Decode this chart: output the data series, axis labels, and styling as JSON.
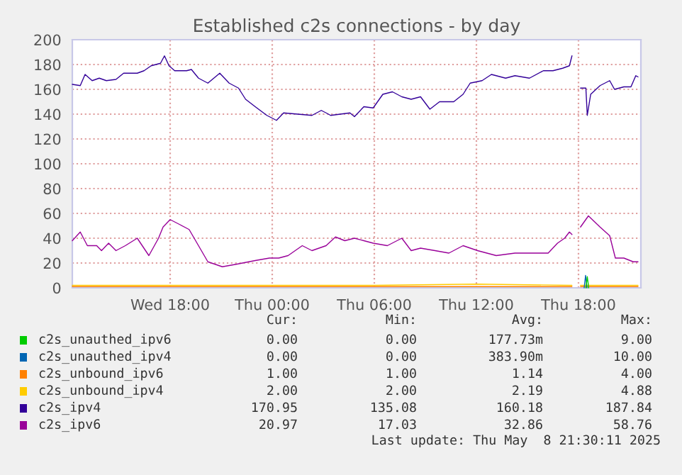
{
  "chart_data": {
    "type": "line",
    "title": "Established c2s connections - by day",
    "xlim": [
      "2025-05-07T12:15",
      "2025-05-08T21:40"
    ],
    "xticks": [
      {
        "value": "2025-05-07T18:00",
        "label": "Wed 18:00"
      },
      {
        "value": "2025-05-08T00:00",
        "label": "Thu 00:00"
      },
      {
        "value": "2025-05-08T06:00",
        "label": "Thu 06:00"
      },
      {
        "value": "2025-05-08T12:00",
        "label": "Thu 12:00"
      },
      {
        "value": "2025-05-08T18:00",
        "label": "Thu 18:00"
      }
    ],
    "ylim": [
      0,
      200
    ],
    "yticks": [
      0,
      20,
      40,
      60,
      80,
      100,
      120,
      140,
      160,
      180,
      200
    ],
    "grid": true,
    "legend": "bottom",
    "marker": "none",
    "line_style": "solid",
    "series": [
      {
        "name": "c2s_unauthed_ipv6",
        "color": "#00cc00",
        "x": [
          "2025-05-08T18:26",
          "2025-05-08T18:31",
          "2025-05-08T18:36"
        ],
        "values": [
          0,
          9,
          0
        ]
      },
      {
        "name": "c2s_unauthed_ipv4",
        "color": "#0066b3",
        "x": [
          "2025-05-08T18:20",
          "2025-05-08T18:25",
          "2025-05-08T18:30"
        ],
        "values": [
          0,
          10,
          0
        ]
      },
      {
        "name": "c2s_unbound_ipv6",
        "color": "#ff8000",
        "x": [
          "2025-05-07T12:15",
          "2025-05-08T06:00",
          "2025-05-08T17:37",
          "2025-05-08T17:52",
          "2025-05-08T18:07",
          "2025-05-08T21:30"
        ],
        "values": [
          1,
          1,
          1,
          null,
          1,
          1
        ]
      },
      {
        "name": "c2s_unbound_ipv4",
        "color": "#ffcc00",
        "x": [
          "2025-05-07T12:15",
          "2025-05-07T20:00",
          "2025-05-08T06:00",
          "2025-05-08T12:00",
          "2025-05-08T17:37",
          "2025-05-08T17:52",
          "2025-05-08T18:07",
          "2025-05-08T21:30"
        ],
        "values": [
          2,
          2,
          2,
          3,
          2,
          null,
          2,
          2
        ]
      },
      {
        "name": "c2s_ipv4",
        "color": "#330099",
        "x": [
          "2025-05-07T12:15",
          "2025-05-07T12:43",
          "2025-05-07T13:00",
          "2025-05-07T13:25",
          "2025-05-07T13:50",
          "2025-05-07T14:15",
          "2025-05-07T14:49",
          "2025-05-07T15:16",
          "2025-05-07T16:04",
          "2025-05-07T16:28",
          "2025-05-07T16:53",
          "2025-05-07T17:26",
          "2025-05-07T17:40",
          "2025-05-07T17:56",
          "2025-05-07T18:16",
          "2025-05-07T18:58",
          "2025-05-07T19:15",
          "2025-05-07T19:40",
          "2025-05-07T20:13",
          "2025-05-07T20:55",
          "2025-05-07T21:28",
          "2025-05-07T22:01",
          "2025-05-07T22:26",
          "2025-05-07T23:00",
          "2025-05-07T23:41",
          "2025-05-08T00:15",
          "2025-05-08T00:40",
          "2025-05-08T01:30",
          "2025-05-08T02:20",
          "2025-05-08T02:53",
          "2025-05-08T03:10",
          "2025-05-08T03:26",
          "2025-05-08T04:34",
          "2025-05-08T04:50",
          "2025-05-08T05:23",
          "2025-05-08T05:56",
          "2025-05-08T06:30",
          "2025-05-08T07:04",
          "2025-05-08T07:37",
          "2025-05-08T08:10",
          "2025-05-08T08:43",
          "2025-05-08T09:16",
          "2025-05-08T09:50",
          "2025-05-08T10:40",
          "2025-05-08T11:13",
          "2025-05-08T11:38",
          "2025-05-08T12:20",
          "2025-05-08T12:53",
          "2025-05-08T13:43",
          "2025-05-08T14:16",
          "2025-05-08T15:07",
          "2025-05-08T15:56",
          "2025-05-08T16:30",
          "2025-05-08T17:04",
          "2025-05-08T17:28",
          "2025-05-08T17:37",
          "2025-05-08T17:52",
          "2025-05-08T18:07",
          "2025-05-08T18:26",
          "2025-05-08T18:31",
          "2025-05-08T18:43",
          "2025-05-08T19:16",
          "2025-05-08T19:50",
          "2025-05-08T20:07",
          "2025-05-08T20:40",
          "2025-05-08T21:05",
          "2025-05-08T21:22",
          "2025-05-08T21:30"
        ],
        "values": [
          164,
          163,
          172,
          167,
          169,
          167,
          168,
          173,
          173,
          175,
          179,
          181,
          187,
          179,
          175,
          175,
          176,
          169,
          165,
          173,
          165,
          161,
          152,
          146,
          139,
          135,
          141,
          140,
          139,
          143,
          141,
          139,
          141,
          138,
          146,
          145,
          156,
          158,
          154,
          152,
          154,
          144,
          150,
          150,
          156,
          165,
          167,
          172,
          169,
          171,
          169,
          175,
          175,
          177,
          179,
          187,
          null,
          161,
          161,
          139,
          156,
          163,
          167,
          160,
          162,
          162,
          171,
          170
        ]
      },
      {
        "name": "c2s_ipv6",
        "color": "#990099",
        "x": [
          "2025-05-07T12:15",
          "2025-05-07T12:43",
          "2025-05-07T13:08",
          "2025-05-07T13:41",
          "2025-05-07T13:58",
          "2025-05-07T14:23",
          "2025-05-07T14:49",
          "2025-05-07T15:22",
          "2025-05-07T16:04",
          "2025-05-07T16:45",
          "2025-05-07T17:19",
          "2025-05-07T17:35",
          "2025-05-07T18:00",
          "2025-05-07T18:34",
          "2025-05-07T19:07",
          "2025-05-07T19:40",
          "2025-05-07T20:13",
          "2025-05-07T21:04",
          "2025-05-07T21:53",
          "2025-05-07T23:00",
          "2025-05-07T23:50",
          "2025-05-08T00:23",
          "2025-05-08T00:56",
          "2025-05-08T01:46",
          "2025-05-08T02:20",
          "2025-05-08T03:10",
          "2025-05-08T03:43",
          "2025-05-08T04:16",
          "2025-05-08T04:50",
          "2025-05-08T05:23",
          "2025-05-08T05:56",
          "2025-05-08T06:46",
          "2025-05-08T07:37",
          "2025-05-08T08:10",
          "2025-05-08T08:43",
          "2025-05-08T09:34",
          "2025-05-08T10:23",
          "2025-05-08T11:13",
          "2025-05-08T12:04",
          "2025-05-08T13:10",
          "2025-05-08T14:16",
          "2025-05-08T15:23",
          "2025-05-08T16:13",
          "2025-05-08T16:46",
          "2025-05-08T17:11",
          "2025-05-08T17:28",
          "2025-05-08T17:37",
          "2025-05-08T17:52",
          "2025-05-08T18:07",
          "2025-05-08T18:35",
          "2025-05-08T19:16",
          "2025-05-08T19:50",
          "2025-05-08T20:10",
          "2025-05-08T20:40",
          "2025-05-08T21:13",
          "2025-05-08T21:30"
        ],
        "values": [
          38,
          45,
          34,
          34,
          30,
          36,
          30,
          34,
          40,
          26,
          40,
          49,
          55,
          51,
          47,
          34,
          21,
          17,
          19,
          22,
          24,
          24,
          26,
          34,
          30,
          34,
          41,
          38,
          40,
          38,
          36,
          34,
          40,
          30,
          32,
          30,
          28,
          34,
          30,
          26,
          28,
          28,
          28,
          36,
          40,
          45,
          43,
          null,
          49,
          58,
          49,
          42,
          24,
          24,
          21,
          21
        ]
      }
    ],
    "annotations": [
      "Cur:",
      "Min:",
      "Avg:",
      "Max:",
      "0.00",
      "0.00",
      "177.73m",
      "9.00",
      "0.00",
      "0.00",
      "383.90m",
      "10.00",
      "1.00",
      "1.00",
      "1.14",
      "4.00",
      "2.00",
      "2.00",
      "2.19",
      "4.88",
      "170.95",
      "135.08",
      "160.18",
      "187.84",
      "20.97",
      "17.03",
      "32.86",
      "58.76",
      "Last update: Thu May  8 21:30:11 2025"
    ]
  }
}
